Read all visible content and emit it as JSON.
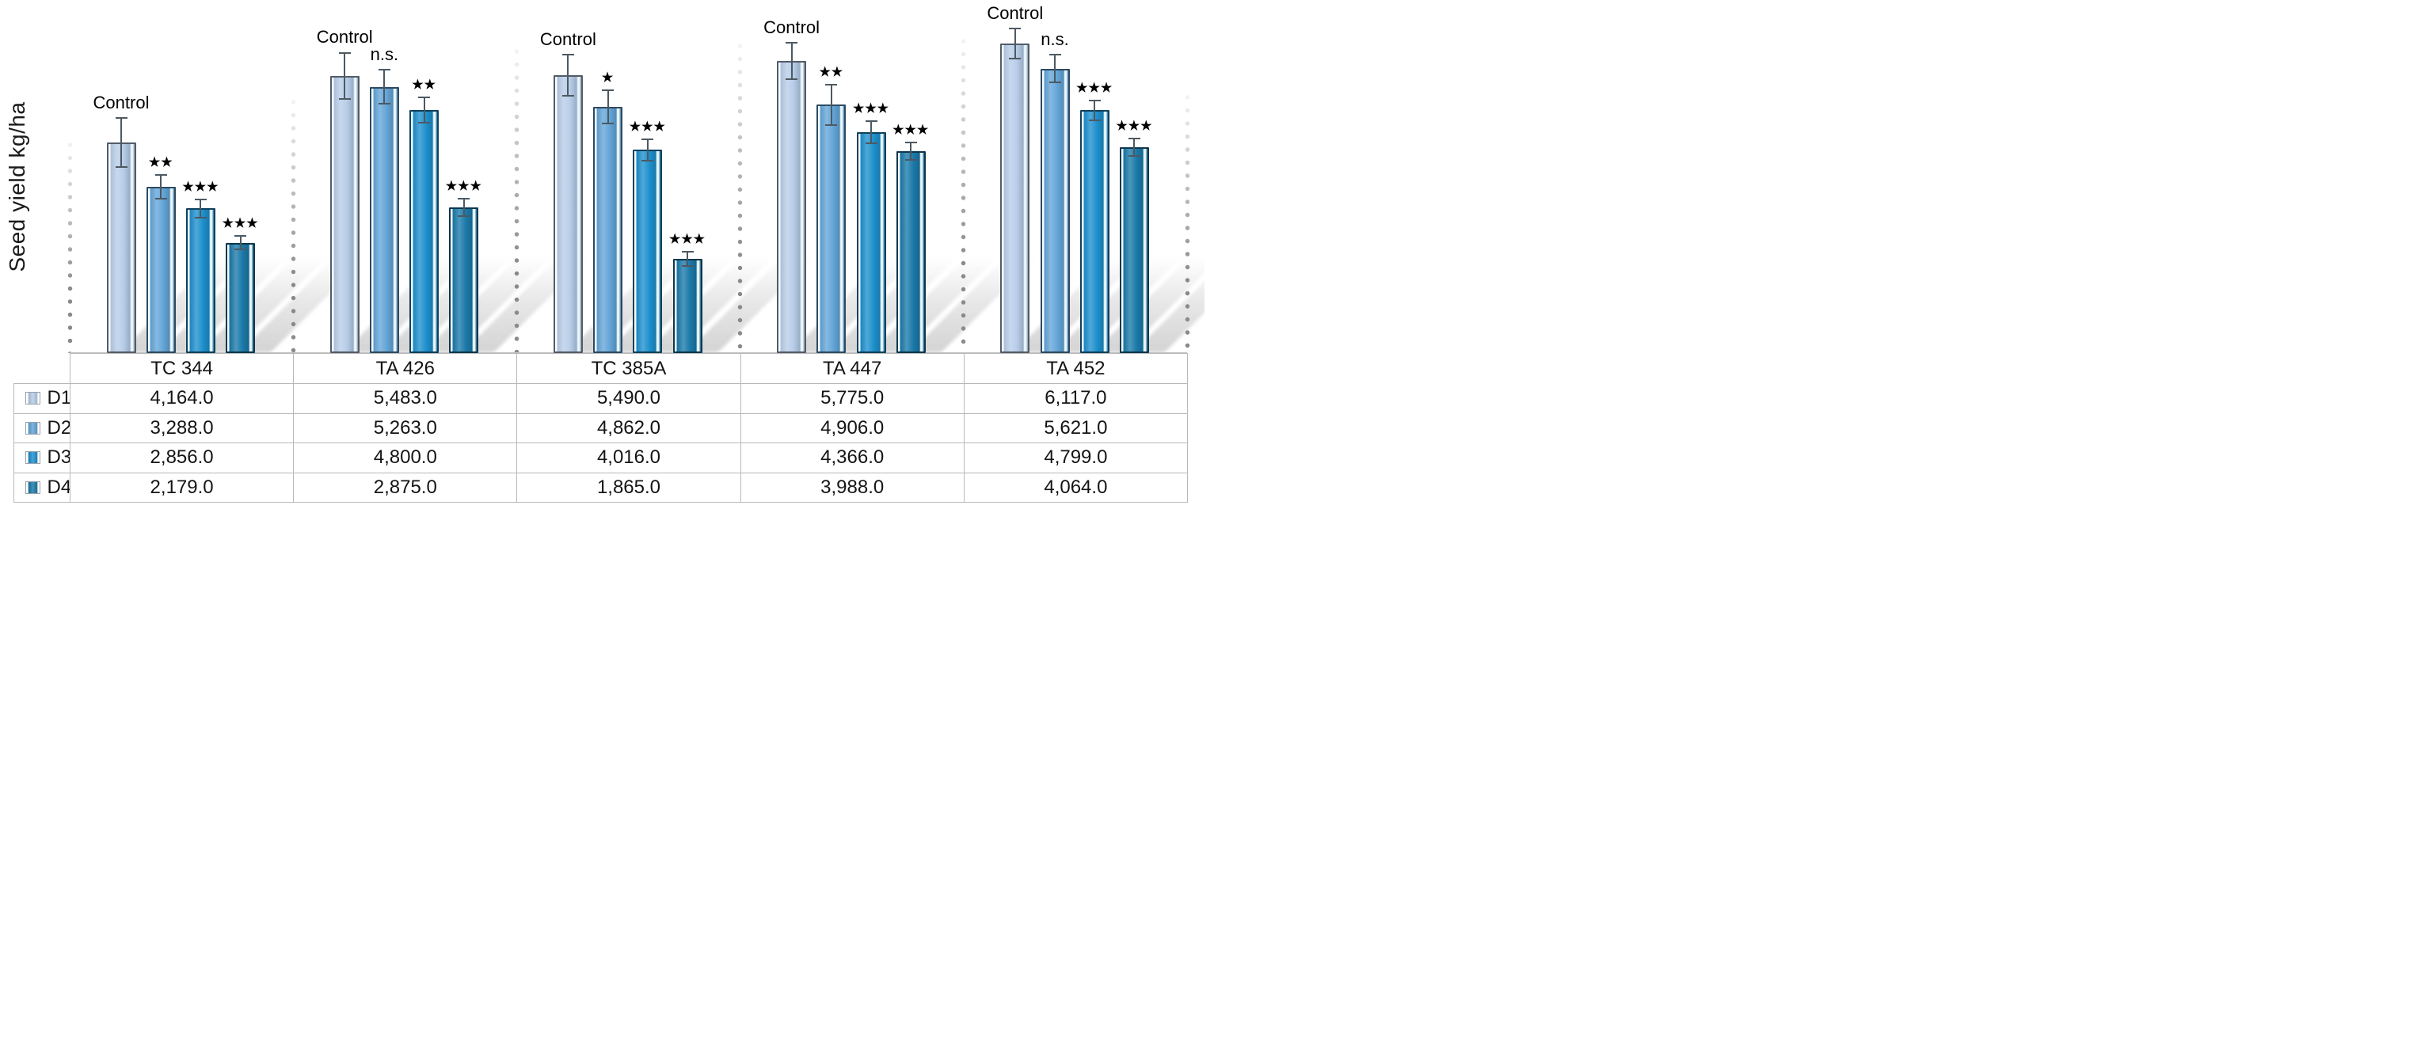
{
  "chart_data": {
    "type": "bar",
    "title": "",
    "xlabel": "",
    "ylabel": "Seed yield kg/ha",
    "ylim": [
      0,
      6600
    ],
    "grid": false,
    "legend_position": "table-left-column",
    "categories": [
      "TC 344",
      "TA 426",
      "TC 385A",
      "TA 447",
      "TA 452"
    ],
    "series": [
      {
        "name": "D1",
        "values": [
          4164.0,
          5483.0,
          5490.0,
          5775.0,
          6117.0
        ]
      },
      {
        "name": "D2",
        "values": [
          3288.0,
          5263.0,
          4862.0,
          4906.0,
          5621.0
        ]
      },
      {
        "name": "D3",
        "values": [
          2856.0,
          4800.0,
          4016.0,
          4366.0,
          4799.0
        ]
      },
      {
        "name": "D4",
        "values": [
          2179.0,
          2875.0,
          1865.0,
          3988.0,
          4064.0
        ]
      }
    ],
    "significance_annotations": [
      {
        "name": "D1",
        "labels": [
          "Control",
          "Control",
          "Control",
          "Control",
          "Control"
        ]
      },
      {
        "name": "D2",
        "labels": [
          "**",
          "n.s.",
          "*",
          "**",
          "n.s."
        ]
      },
      {
        "name": "D3",
        "labels": [
          "***",
          "**",
          "***",
          "***",
          "***"
        ]
      },
      {
        "name": "D4",
        "labels": [
          "***",
          "***",
          "***",
          "***",
          "***"
        ]
      }
    ],
    "error_bars_estimated": [
      {
        "name": "D1",
        "values": [
          500,
          470,
          420,
          380,
          320
        ]
      },
      {
        "name": "D2",
        "values": [
          250,
          350,
          345,
          420,
          290
        ]
      },
      {
        "name": "D3",
        "values": [
          190,
          270,
          230,
          230,
          215
        ]
      },
      {
        "name": "D4",
        "values": [
          150,
          190,
          155,
          190,
          190
        ]
      }
    ]
  },
  "figure": {
    "ylabel": "Seed yield kg/ha",
    "groups": [
      {
        "name": "TC 344",
        "values": [
          4164,
          3288,
          2856,
          2179
        ],
        "errors": [
          500,
          250,
          190,
          150
        ],
        "annotations": [
          "Control",
          "★★",
          "★★★",
          "★★★"
        ]
      },
      {
        "name": "TA 426",
        "values": [
          5483,
          5263,
          4800,
          2875
        ],
        "errors": [
          470,
          350,
          270,
          190
        ],
        "annotations": [
          "Control",
          "n.s.",
          "★★",
          "★★★"
        ]
      },
      {
        "name": "TC 385A",
        "values": [
          5490,
          4862,
          4016,
          1865
        ],
        "errors": [
          420,
          345,
          230,
          155
        ],
        "annotations": [
          "Control",
          "★",
          "★★★",
          "★★★"
        ]
      },
      {
        "name": "TA 447",
        "values": [
          5775,
          4906,
          4366,
          3988
        ],
        "errors": [
          380,
          420,
          230,
          190
        ],
        "annotations": [
          "Control",
          "★★",
          "★★★",
          "★★★"
        ]
      },
      {
        "name": "TA 452",
        "values": [
          6117,
          5621,
          4799,
          4064
        ],
        "errors": [
          320,
          290,
          215,
          190
        ],
        "annotations": [
          "Control",
          "n.s.",
          "★★★",
          "★★★"
        ]
      }
    ]
  },
  "series_meta": [
    {
      "id": "D1",
      "color": "#b7cde8"
    },
    {
      "id": "D2",
      "color": "#64a5d8"
    },
    {
      "id": "D3",
      "color": "#1e90cd"
    },
    {
      "id": "D4",
      "color": "#1b7aa9"
    }
  ],
  "table": {
    "column_headers": [
      "TC 344",
      "TA 426",
      "TC 385A",
      "TA 447",
      "TA 452"
    ],
    "rows": [
      {
        "label": "D1",
        "cells": [
          "4,164.0",
          "5,483.0",
          "5,490.0",
          "5,775.0",
          "6,117.0"
        ]
      },
      {
        "label": "D2",
        "cells": [
          "3,288.0",
          "5,263.0",
          "4,862.0",
          "4,906.0",
          "5,621.0"
        ]
      },
      {
        "label": "D3",
        "cells": [
          "2,856.0",
          "4,800.0",
          "4,016.0",
          "4,366.0",
          "4,799.0"
        ]
      },
      {
        "label": "D4",
        "cells": [
          "2,179.0",
          "2,875.0",
          "1,865.0",
          "3,988.0",
          "4,064.0"
        ]
      }
    ]
  },
  "colors": {
    "error_bar": "#4d5962",
    "axis_line": "#c3c3c3",
    "table_border": "#b9b9b9",
    "dot_line": "#8a8a8a",
    "shadow": "#8c8c8c",
    "text": "#141414"
  }
}
